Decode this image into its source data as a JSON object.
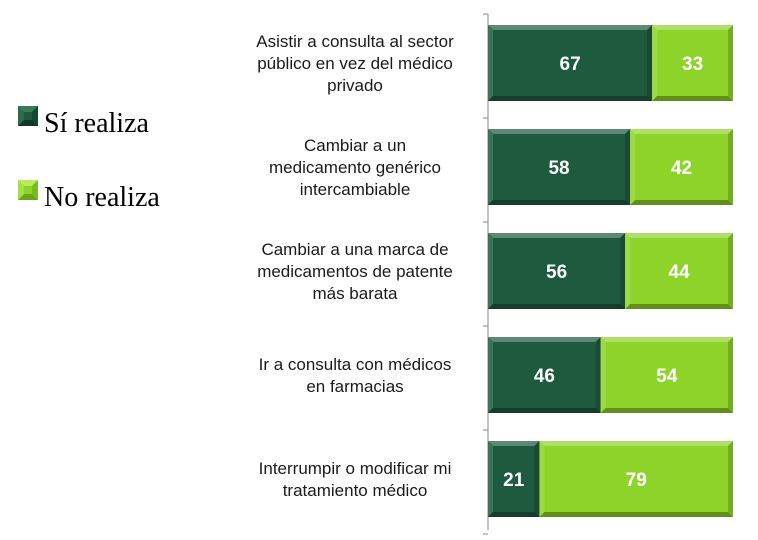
{
  "legend": [
    {
      "label": "Sí realiza",
      "color": "#1e5a3e"
    },
    {
      "label": "No realiza",
      "color": "#8ed32a"
    }
  ],
  "chart_data": {
    "type": "bar",
    "orientation": "horizontal",
    "stacked": true,
    "categories": [
      [
        "Asistir a consulta al sector",
        "público en vez del médico",
        "privado"
      ],
      [
        "Cambiar a un",
        "medicamento genérico",
        "intercambiable"
      ],
      [
        "Cambiar a una marca de",
        "medicamentos de patente",
        "más barata"
      ],
      [
        "Ir a consulta con médicos",
        "en farmacias"
      ],
      [
        "Interrumpir o modificar mi",
        "tratamiento médico"
      ]
    ],
    "series": [
      {
        "name": "Sí realiza",
        "color": "#1e5a3e",
        "values": [
          67,
          58,
          56,
          46,
          21
        ]
      },
      {
        "name": "No realiza",
        "color": "#8ed32a",
        "values": [
          33,
          42,
          44,
          54,
          79
        ]
      }
    ],
    "xlim": [
      0,
      100
    ],
    "grid": false,
    "legend_position": "left"
  }
}
